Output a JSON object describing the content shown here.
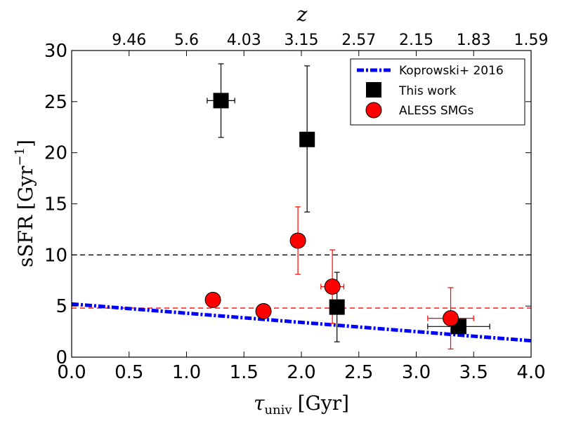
{
  "chart_data": {
    "type": "scatter",
    "xlabel": "τ_univ [Gyr]",
    "xlabel_main": "τ",
    "xlabel_sub": "univ",
    "xlabel_unit": "[Gyr]",
    "ylabel": "sSFR [Gyr⁻¹]",
    "ylabel_main": "sSFR",
    "ylabel_unit": "[Gyr",
    "ylabel_sup": "−1",
    "ylabel_close": "]",
    "top_xlabel": "z",
    "xlim": [
      0,
      4
    ],
    "ylim": [
      0,
      30
    ],
    "x_ticks": [
      "0.0",
      "0.5",
      "1.0",
      "1.5",
      "2.0",
      "2.5",
      "3.0",
      "3.5",
      "4.0"
    ],
    "y_ticks": [
      "0",
      "5",
      "10",
      "15",
      "20",
      "25",
      "30"
    ],
    "top_ticks": [
      "9.46",
      "5.6",
      "4.03",
      "3.15",
      "2.57",
      "2.15",
      "1.83",
      "1.59"
    ],
    "hlines": [
      {
        "y": 10,
        "color": "#000000"
      },
      {
        "y": 4.8,
        "color": "#ff0000"
      }
    ],
    "series": [
      {
        "name": "Koprowski+ 2016",
        "kind": "line",
        "color": "#0000ff",
        "x": [
          0.0,
          4.0
        ],
        "y": [
          5.2,
          1.6
        ]
      },
      {
        "name": "This work",
        "kind": "points",
        "marker": "square",
        "color": "#000000",
        "points": [
          {
            "x": 1.3,
            "y": 25.1,
            "xerr": 0.12,
            "yerr_low": 3.6,
            "yerr_high": 3.6
          },
          {
            "x": 2.05,
            "y": 21.3,
            "xerr": 0.0,
            "yerr_low": 7.1,
            "yerr_high": 7.2
          },
          {
            "x": 2.31,
            "y": 4.9,
            "xerr": 0.0,
            "yerr_low": 3.4,
            "yerr_high": 3.4
          },
          {
            "x": 3.37,
            "y": 3.0,
            "xerr": 0.27,
            "yerr_low": 0.0,
            "yerr_high": 0.0
          }
        ]
      },
      {
        "name": "ALESS SMGs",
        "kind": "points",
        "marker": "circle",
        "color": "#ff0000",
        "points": [
          {
            "x": 1.23,
            "y": 5.6,
            "xerr": 0.0,
            "yerr_low": 0.4,
            "yerr_high": 0.7
          },
          {
            "x": 1.67,
            "y": 4.5,
            "xerr": 0.0,
            "yerr_low": 0.0,
            "yerr_high": 0.0
          },
          {
            "x": 1.97,
            "y": 11.4,
            "xerr": 0.0,
            "yerr_low": 3.3,
            "yerr_high": 3.3
          },
          {
            "x": 2.27,
            "y": 6.9,
            "xerr": 0.1,
            "yerr_low": 3.6,
            "yerr_high": 3.6
          },
          {
            "x": 3.3,
            "y": 3.8,
            "xerr": 0.2,
            "yerr_low": 3.0,
            "yerr_high": 3.0
          }
        ]
      }
    ],
    "legend": {
      "position": "top-right",
      "entries": [
        "Koprowski+ 2016",
        "This work",
        "ALESS SMGs"
      ]
    }
  }
}
